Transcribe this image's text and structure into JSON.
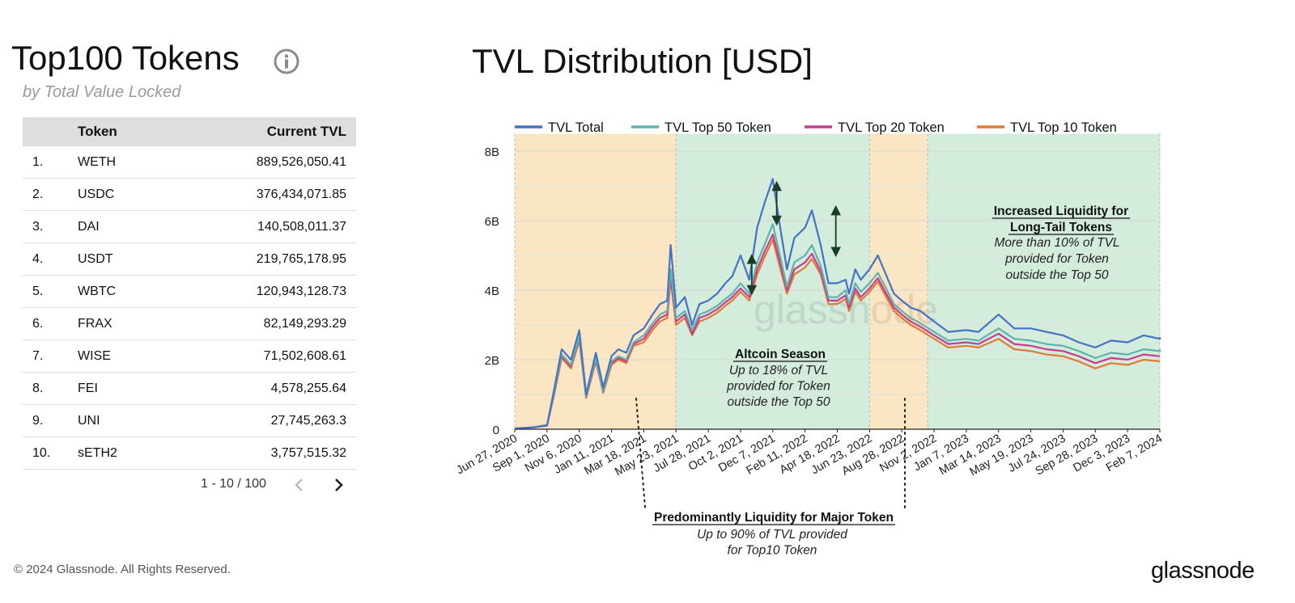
{
  "left_panel": {
    "title": "Top100 Tokens",
    "subtitle": "by Total Value Locked",
    "table": {
      "headers": [
        "Token",
        "Current TVL"
      ],
      "rows": [
        {
          "rank": "1.",
          "token": "WETH",
          "tvl": "889,526,050.41"
        },
        {
          "rank": "2.",
          "token": "USDC",
          "tvl": "376,434,071.85"
        },
        {
          "rank": "3.",
          "token": "DAI",
          "tvl": "140,508,011.37"
        },
        {
          "rank": "4.",
          "token": "USDT",
          "tvl": "219,765,178.95"
        },
        {
          "rank": "5.",
          "token": "WBTC",
          "tvl": "120,943,128.73"
        },
        {
          "rank": "6.",
          "token": "FRAX",
          "tvl": "82,149,293.29"
        },
        {
          "rank": "7.",
          "token": "WISE",
          "tvl": "71,502,608.61"
        },
        {
          "rank": "8.",
          "token": "FEI",
          "tvl": "4,578,255.64"
        },
        {
          "rank": "9.",
          "token": "UNI",
          "tvl": "27,745,263.3"
        },
        {
          "rank": "10.",
          "token": "sETH2",
          "tvl": "3,757,515.32"
        }
      ]
    },
    "pagination": "1 - 10 / 100",
    "icons": {
      "info": "info-icon",
      "prev": "chevron-left-icon",
      "next": "chevron-right-icon"
    }
  },
  "footer": {
    "copyright": "© 2024 Glassnode. All Rights Reserved.",
    "logo": "glassnode"
  },
  "chart_data": {
    "type": "line",
    "title": "TVL Distribution [USD]",
    "watermark": "glassnode",
    "x_tick_labels": [
      "Jun 27, 2020",
      "Sep 1, 2020",
      "Nov 6, 2020",
      "Jan 11, 2021",
      "Mar 18, 2021",
      "May 23, 2021",
      "Jul 28, 2021",
      "Oct 2, 2021",
      "Dec 7, 2021",
      "Feb 11, 2022",
      "Apr 18, 2022",
      "Jun 23, 2022",
      "Aug 28, 2022",
      "Nov 2, 2022",
      "Jan 7, 2023",
      "Mar 14, 2023",
      "May 19, 2023",
      "Jul 24, 2023",
      "Sep 28, 2023",
      "Dec 3, 2023",
      "Feb 7, 2024"
    ],
    "y_ticks": [
      {
        "value": 0,
        "label": "0"
      },
      {
        "value": 2,
        "label": "2B"
      },
      {
        "value": 4,
        "label": "4B"
      },
      {
        "value": 6,
        "label": "6B"
      },
      {
        "value": 8,
        "label": "8B"
      }
    ],
    "ylim": [
      0,
      8.5
    ],
    "y_unit": "billions USD",
    "grid": true,
    "legend_position": "top",
    "x": [
      "2020-06-27",
      "2020-08-01",
      "2020-09-01",
      "2020-09-15",
      "2020-10-01",
      "2020-10-20",
      "2020-11-06",
      "2020-11-20",
      "2020-12-10",
      "2020-12-25",
      "2021-01-11",
      "2021-01-25",
      "2021-02-10",
      "2021-02-25",
      "2021-03-18",
      "2021-04-05",
      "2021-04-20",
      "2021-05-05",
      "2021-05-12",
      "2021-05-23",
      "2021-06-10",
      "2021-06-25",
      "2021-07-10",
      "2021-07-28",
      "2021-08-15",
      "2021-09-01",
      "2021-09-15",
      "2021-10-02",
      "2021-10-20",
      "2021-11-05",
      "2021-11-20",
      "2021-12-07",
      "2021-12-20",
      "2022-01-05",
      "2022-01-20",
      "2022-02-11",
      "2022-02-25",
      "2022-03-15",
      "2022-03-31",
      "2022-04-18",
      "2022-05-05",
      "2022-05-12",
      "2022-05-25",
      "2022-06-05",
      "2022-06-23",
      "2022-07-10",
      "2022-07-25",
      "2022-08-12",
      "2022-08-28",
      "2022-09-15",
      "2022-10-05",
      "2022-11-02",
      "2022-12-01",
      "2023-01-07",
      "2023-02-01",
      "2023-03-14",
      "2023-04-15",
      "2023-05-19",
      "2023-06-20",
      "2023-07-24",
      "2023-08-25",
      "2023-09-28",
      "2023-10-30",
      "2023-12-03",
      "2024-01-05",
      "2024-02-07",
      "2024-02-28"
    ],
    "series": [
      {
        "name": "TVL Total",
        "color": "#4472c4",
        "values": [
          0.02,
          0.05,
          0.12,
          1.1,
          2.3,
          2.0,
          2.85,
          1.0,
          2.2,
          1.2,
          2.1,
          2.3,
          2.2,
          2.7,
          2.9,
          3.3,
          3.6,
          3.7,
          5.3,
          3.5,
          3.8,
          3.0,
          3.6,
          3.7,
          3.9,
          4.2,
          4.4,
          5.0,
          4.3,
          5.8,
          6.5,
          7.2,
          6.0,
          4.6,
          5.5,
          5.8,
          6.3,
          5.3,
          4.2,
          4.2,
          4.3,
          3.9,
          4.6,
          4.3,
          4.6,
          5.0,
          4.5,
          3.9,
          3.7,
          3.5,
          3.4,
          3.1,
          2.8,
          2.85,
          2.8,
          3.3,
          2.9,
          2.9,
          2.8,
          2.7,
          2.5,
          2.35,
          2.55,
          2.5,
          2.7,
          2.6,
          2.65
        ]
      },
      {
        "name": "TVL Top 50 Token",
        "color": "#5fb3ad",
        "values": [
          0.02,
          0.05,
          0.11,
          1.0,
          2.15,
          1.85,
          2.65,
          0.95,
          2.05,
          1.1,
          1.95,
          2.1,
          2.0,
          2.5,
          2.7,
          3.05,
          3.3,
          3.4,
          4.6,
          3.2,
          3.4,
          2.85,
          3.3,
          3.4,
          3.55,
          3.75,
          3.9,
          4.2,
          3.9,
          4.8,
          5.3,
          5.9,
          5.1,
          4.1,
          4.8,
          5.0,
          5.3,
          4.7,
          3.8,
          3.8,
          4.0,
          3.6,
          4.2,
          3.95,
          4.2,
          4.5,
          4.1,
          3.6,
          3.4,
          3.2,
          3.05,
          2.8,
          2.55,
          2.6,
          2.55,
          2.9,
          2.6,
          2.55,
          2.45,
          2.4,
          2.25,
          2.05,
          2.2,
          2.15,
          2.3,
          2.25,
          2.3
        ]
      },
      {
        "name": "TVL Top 20 Token",
        "color": "#c83e8e",
        "values": [
          0.02,
          0.05,
          0.1,
          0.98,
          2.1,
          1.8,
          2.6,
          0.93,
          2.0,
          1.08,
          1.9,
          2.05,
          1.95,
          2.45,
          2.6,
          2.95,
          3.2,
          3.3,
          4.4,
          3.1,
          3.3,
          2.75,
          3.2,
          3.3,
          3.45,
          3.65,
          3.8,
          4.05,
          3.8,
          4.6,
          5.1,
          5.6,
          4.9,
          4.0,
          4.6,
          4.8,
          5.05,
          4.55,
          3.7,
          3.7,
          3.85,
          3.5,
          4.05,
          3.8,
          4.05,
          4.35,
          3.95,
          3.5,
          3.3,
          3.1,
          2.95,
          2.7,
          2.45,
          2.5,
          2.45,
          2.75,
          2.45,
          2.4,
          2.3,
          2.25,
          2.1,
          1.9,
          2.05,
          2.0,
          2.15,
          2.1,
          2.1
        ]
      },
      {
        "name": "TVL Top 10 Token",
        "color": "#e07b34",
        "values": [
          0.02,
          0.05,
          0.1,
          0.95,
          2.05,
          1.75,
          2.55,
          0.9,
          1.95,
          1.05,
          1.85,
          2.0,
          1.9,
          2.4,
          2.5,
          2.85,
          3.1,
          3.2,
          4.3,
          3.0,
          3.2,
          2.7,
          3.1,
          3.2,
          3.35,
          3.55,
          3.7,
          3.95,
          3.7,
          4.45,
          4.95,
          5.45,
          4.75,
          3.9,
          4.45,
          4.65,
          4.9,
          4.45,
          3.6,
          3.6,
          3.75,
          3.4,
          3.95,
          3.7,
          3.95,
          4.25,
          3.85,
          3.4,
          3.2,
          3.0,
          2.85,
          2.6,
          2.35,
          2.4,
          2.35,
          2.6,
          2.3,
          2.25,
          2.15,
          2.1,
          1.95,
          1.75,
          1.9,
          1.85,
          2.0,
          1.95,
          1.95
        ]
      }
    ],
    "regions": [
      {
        "from": "2020-06-27",
        "to": "2021-05-23",
        "color": "#fae6c3"
      },
      {
        "from": "2021-05-23",
        "to": "2022-06-23",
        "color": "#d3ecdc"
      },
      {
        "from": "2022-06-23",
        "to": "2022-10-20",
        "color": "#fae6c3"
      },
      {
        "from": "2022-10-20",
        "to": "2024-02-28",
        "color": "#d3ecdc"
      }
    ],
    "arrows": [
      {
        "date": "2021-10-25",
        "from": 4.9,
        "to": 4.0
      },
      {
        "date": "2021-12-15",
        "from": 7.0,
        "to": 6.0
      },
      {
        "date": "2022-04-15",
        "from": 6.3,
        "to": 5.1
      }
    ],
    "annotations": [
      {
        "title": "Altcoin Season",
        "lines": [
          "Up to 18% of TVL",
          "provided for Token",
          "outside the Top 50"
        ]
      },
      {
        "title": "Increased Liquidity for Long-Tail Tokens",
        "title_lines": [
          "Increased Liquidity for",
          "Long-Tail Tokens"
        ],
        "lines": [
          "More than 10% of TVL",
          "provided for Token",
          "outside the Top 50"
        ]
      },
      {
        "title": "Predominantly Liquidity for Major Token",
        "lines": [
          "Up to 90% of TVL provided",
          "for Top10 Token"
        ]
      }
    ]
  }
}
